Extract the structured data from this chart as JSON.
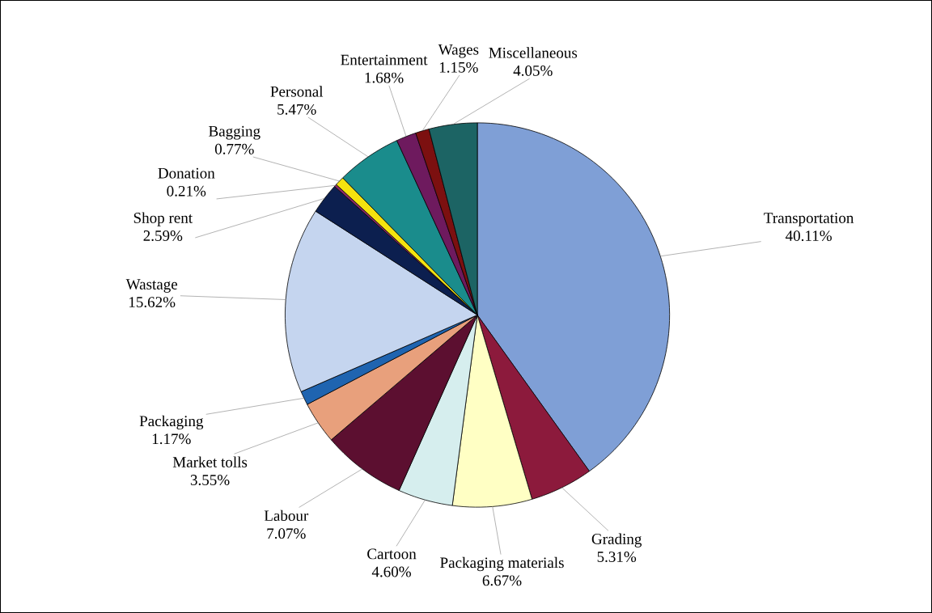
{
  "chart_data": {
    "type": "pie",
    "value_labels": [
      "40.11%",
      "5.31%",
      "6.67%",
      "4.60%",
      "7.07%",
      "3.55%",
      "1.17%",
      "15.62%",
      "2.59%",
      "0.21%",
      "0.77%",
      "5.47%",
      "1.68%",
      "1.15%",
      "4.05%"
    ],
    "categories": [
      "Transportation",
      "Grading",
      "Packaging materials",
      "Cartoon",
      "Labour",
      "Market tolls",
      "Packaging",
      "Wastage",
      "Shop rent",
      "Donation",
      "Bagging",
      "Personal",
      "Entertainment",
      "Wages",
      "Miscellaneous"
    ],
    "values": [
      40.11,
      5.31,
      6.67,
      4.6,
      7.07,
      3.55,
      1.17,
      15.62,
      2.59,
      0.21,
      0.77,
      5.47,
      1.68,
      1.15,
      4.05
    ],
    "colors": [
      "#7f9fd6",
      "#8c1a3c",
      "#ffffc4",
      "#d6eeee",
      "#5c0f30",
      "#e8a07c",
      "#1f64b0",
      "#c5d5ef",
      "#0c1f4f",
      "#8a2a6a",
      "#f5e20f",
      "#1a8c8c",
      "#6e1a5e",
      "#7c1010",
      "#1c6464"
    ]
  }
}
